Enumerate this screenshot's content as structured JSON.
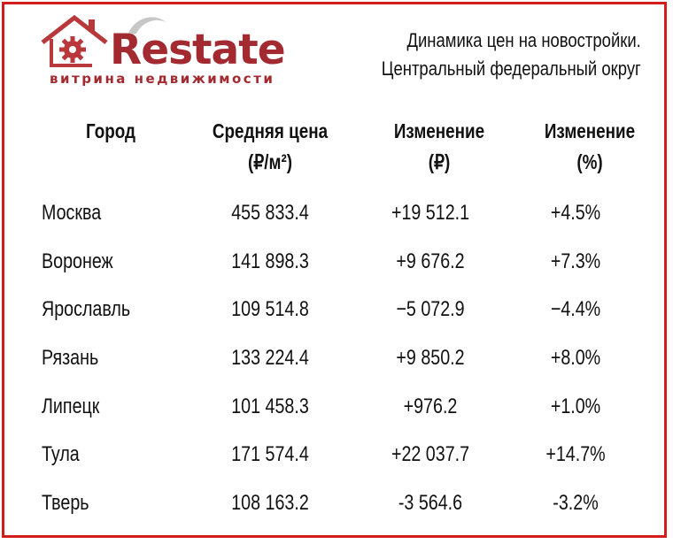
{
  "logo": {
    "wordmark": "Restate",
    "tagline": "витрина недвижимости",
    "colors": {
      "brand": "#a32a30",
      "gear": "#b9383c",
      "gray": "#c7c7c7"
    }
  },
  "title": {
    "line1": "Динамика цен на новостройки.",
    "line2": "Центральный федеральный округ"
  },
  "table": {
    "headers": {
      "city": "Город",
      "price_1": "Средняя цена",
      "price_2": "(₽/м²)",
      "abs_1": "Изменение",
      "abs_2": "(₽)",
      "pct_1": "Изменение",
      "pct_2": "(%)"
    },
    "rows": [
      {
        "city": "Москва",
        "price": "455 833.4",
        "change_abs": "+19 512.1",
        "change_pct": "+4.5%"
      },
      {
        "city": "Воронеж",
        "price": "141 898.3",
        "change_abs": "+9 676.2",
        "change_pct": "+7.3%"
      },
      {
        "city": "Ярославль",
        "price": "109 514.8",
        "change_abs": "−5 072.9",
        "change_pct": "−4.4%"
      },
      {
        "city": "Рязань",
        "price": "133 224.4",
        "change_abs": "+9 850.2",
        "change_pct": "+8.0%"
      },
      {
        "city": "Липецк",
        "price": "101 458.3",
        "change_abs": "+976.2",
        "change_pct": "+1.0%"
      },
      {
        "city": "Тула",
        "price": "171 574.4",
        "change_abs": "+22 037.7",
        "change_pct": "+14.7%"
      },
      {
        "city": "Тверь",
        "price": "108 163.2",
        "change_abs": "-3 564.6",
        "change_pct": "-3.2%"
      }
    ]
  },
  "colors": {
    "border": "#d31d1d",
    "text": "#111111",
    "background": "#ffffff"
  }
}
